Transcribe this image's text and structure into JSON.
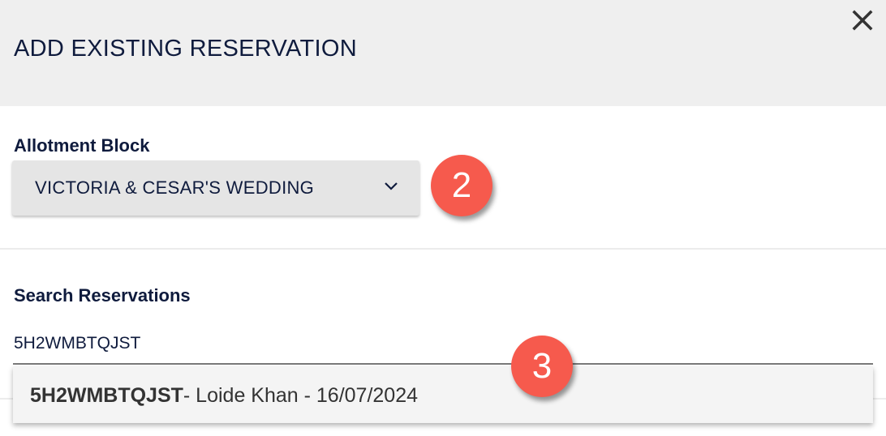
{
  "dialog": {
    "title": "ADD EXISTING RESERVATION",
    "close_icon": "close-icon"
  },
  "allotment": {
    "label": "Allotment Block",
    "selected": "VICTORIA & CESAR'S WEDDING",
    "icon": "chevron-down-icon"
  },
  "search": {
    "label": "Search Reservations",
    "value": "5H2WMBTQJST",
    "results": [
      {
        "code": "5H2WMBTQJST",
        "details": "- Loide Khan - 16/07/2024"
      }
    ]
  },
  "annotations": {
    "step_2": "2",
    "step_3": "3",
    "color": "#f65a4d"
  }
}
